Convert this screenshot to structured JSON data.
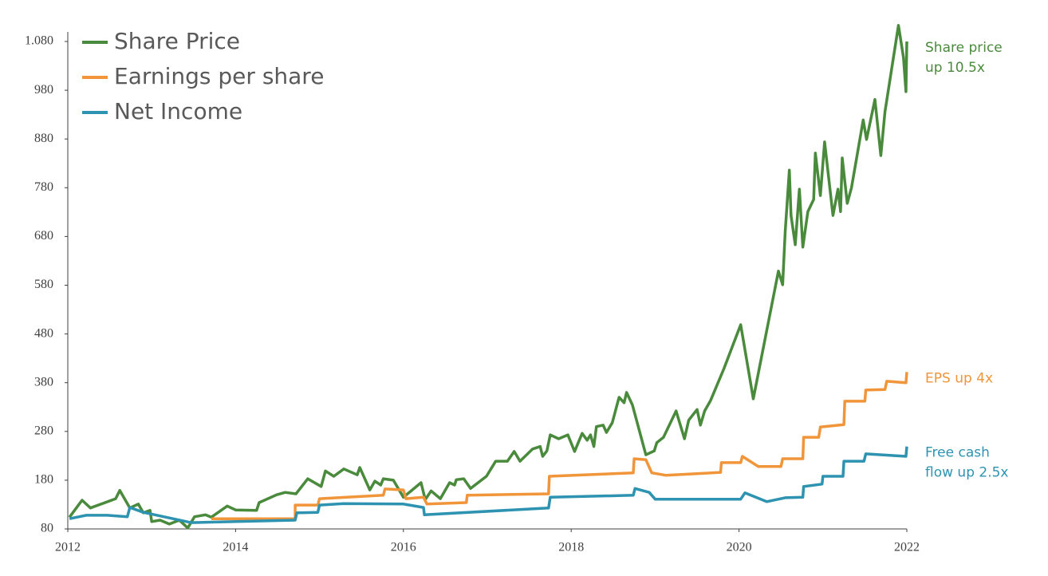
{
  "chart_data": {
    "type": "line",
    "xlim": [
      2012,
      2022
    ],
    "xticks": [
      2012,
      2014,
      2016,
      2018,
      2020,
      2022
    ],
    "ylim": [
      80,
      1080
    ],
    "yticks": [
      80,
      180,
      280,
      380,
      480,
      580,
      680,
      780,
      880,
      980,
      {
        "value": 1080,
        "label": "1.080"
      }
    ],
    "grid": false,
    "legend": "top-left",
    "series": [
      {
        "name": "Share Price",
        "color": "#4a8a3c",
        "x": [
          2012.02,
          2012.17,
          2012.27,
          2012.57,
          2012.62,
          2012.74,
          2012.84,
          2012.9,
          2012.98,
          2013.0,
          2013.1,
          2013.21,
          2013.33,
          2013.43,
          2013.51,
          2013.64,
          2013.71,
          2013.9,
          2014.0,
          2014.25,
          2014.28,
          2014.49,
          2014.59,
          2014.72,
          2014.86,
          2015.02,
          2015.07,
          2015.17,
          2015.29,
          2015.45,
          2015.48,
          2015.6,
          2015.66,
          2015.73,
          2015.76,
          2015.88,
          2016.0,
          2016.21,
          2016.26,
          2016.33,
          2016.44,
          2016.55,
          2016.61,
          2016.63,
          2016.72,
          2016.8,
          2016.99,
          2017.1,
          2017.24,
          2017.32,
          2017.39,
          2017.54,
          2017.63,
          2017.66,
          2017.71,
          2017.75,
          2017.85,
          2017.96,
          2018.04,
          2018.13,
          2018.19,
          2018.23,
          2018.27,
          2018.3,
          2018.38,
          2018.42,
          2018.49,
          2018.57,
          2018.63,
          2018.66,
          2018.73,
          2018.89,
          2018.99,
          2019.02,
          2019.1,
          2019.25,
          2019.35,
          2019.4,
          2019.5,
          2019.54,
          2019.59,
          2019.66,
          2019.82,
          2020.02,
          2020.17,
          2020.47,
          2020.52,
          2020.55,
          2020.6,
          2020.62,
          2020.67,
          2020.72,
          2020.76,
          2020.82,
          2020.89,
          2020.91,
          2020.97,
          2021.02,
          2021.12,
          2021.18,
          2021.21,
          2021.23,
          2021.29,
          2021.34,
          2021.48,
          2021.52,
          2021.62,
          2021.69,
          2021.74,
          2021.9,
          2021.96,
          2021.99,
          2022.0
        ],
        "values": [
          104,
          139,
          123,
          142,
          159,
          123,
          131,
          113,
          118,
          95,
          98,
          90,
          98,
          82,
          105,
          109,
          104,
          127,
          119,
          118,
          134,
          150,
          155,
          152,
          183,
          167,
          199,
          188,
          203,
          191,
          206,
          160,
          178,
          170,
          183,
          180,
          145,
          175,
          140,
          158,
          142,
          175,
          170,
          181,
          183,
          163,
          188,
          219,
          219,
          239,
          219,
          244,
          249,
          229,
          240,
          273,
          265,
          273,
          239,
          276,
          262,
          273,
          249,
          290,
          293,
          278,
          298,
          350,
          339,
          360,
          334,
          232,
          240,
          257,
          268,
          322,
          265,
          303,
          325,
          293,
          322,
          343,
          409,
          499,
          347,
          609,
          581,
          690,
          816,
          723,
          663,
          777,
          658,
          731,
          756,
          851,
          764,
          874,
          723,
          777,
          731,
          841,
          748,
          780,
          919,
          879,
          961,
          846,
          936,
          1113,
          1047,
          977,
          1080
        ]
      },
      {
        "name": "Earnings per share",
        "color": "#f0953a",
        "x": [
          2013.71,
          2014.71,
          2014.71,
          2014.98,
          2015.0,
          2015.76,
          2015.78,
          2016.0,
          2016.03,
          2016.24,
          2016.28,
          2016.75,
          2016.76,
          2017.73,
          2017.74,
          2018.74,
          2018.75,
          2018.89,
          2018.96,
          2019.13,
          2019.78,
          2019.79,
          2020.02,
          2020.04,
          2020.23,
          2020.5,
          2020.52,
          2020.76,
          2020.77,
          2020.95,
          2020.97,
          2021.25,
          2021.26,
          2021.5,
          2021.51,
          2021.74,
          2021.76,
          2021.99,
          2022.0
        ],
        "values": [
          101,
          101,
          129,
          129,
          142,
          149,
          162,
          160,
          142,
          145,
          131,
          134,
          149,
          152,
          188,
          195,
          224,
          222,
          195,
          190,
          196,
          216,
          216,
          229,
          208,
          208,
          224,
          224,
          268,
          268,
          289,
          294,
          342,
          342,
          365,
          366,
          383,
          380,
          402
        ]
      },
      {
        "name": "Net Income",
        "color": "#2e93b0",
        "x": [
          2012.02,
          2012.22,
          2012.47,
          2012.71,
          2012.74,
          2012.9,
          2013.47,
          2014.71,
          2014.73,
          2014.98,
          2015.0,
          2015.29,
          2016.0,
          2016.24,
          2016.25,
          2017.73,
          2017.75,
          2018.74,
          2018.76,
          2018.93,
          2019.0,
          2020.02,
          2020.07,
          2020.33,
          2020.55,
          2020.76,
          2020.77,
          2020.99,
          2021.0,
          2021.24,
          2021.25,
          2021.49,
          2021.51,
          2021.99,
          2022.0
        ],
        "values": [
          101,
          108,
          108,
          105,
          124,
          114,
          93,
          98,
          113,
          114,
          129,
          132,
          131,
          124,
          109,
          123,
          145,
          149,
          163,
          155,
          141,
          141,
          154,
          136,
          144,
          145,
          167,
          172,
          188,
          188,
          219,
          219,
          234,
          229,
          249
        ]
      }
    ],
    "annotations": [
      {
        "lines": [
          "Share price",
          "up 10.5x"
        ],
        "color": "#4a8a3c"
      },
      {
        "lines": [
          "EPS up 4x"
        ],
        "color": "#f0953a"
      },
      {
        "lines": [
          "Free cash",
          "flow up 2.5x"
        ],
        "color": "#2e93b0"
      }
    ]
  }
}
